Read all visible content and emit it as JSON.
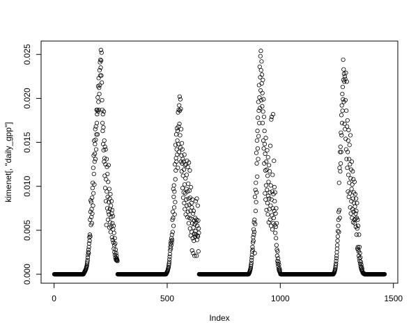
{
  "chart_data": {
    "type": "scatter",
    "title": "",
    "xlabel": "Index",
    "ylabel": "kimenet[, \"daily_gpp\"]",
    "xlim": [
      -57.4,
      1519.4
    ],
    "ylim": [
      -0.00102,
      0.02652
    ],
    "xticks": [
      "0",
      "500",
      "1000",
      "1500"
    ],
    "yticks": [
      "0.000",
      "0.005",
      "0.010",
      "0.015",
      "0.020",
      "0.025"
    ],
    "grid": false,
    "marker": "open-circle",
    "color": "#000000",
    "y": [
      0,
      0,
      0,
      0,
      0,
      0,
      0,
      0,
      0,
      0,
      0,
      0,
      0,
      0,
      0,
      0,
      0,
      0,
      0,
      0,
      0,
      0,
      0,
      0,
      0,
      0,
      0,
      0,
      0,
      0,
      0,
      0,
      0,
      0,
      0,
      0,
      0,
      0,
      0,
      0,
      0,
      0,
      0,
      0,
      0,
      0,
      0,
      0,
      0,
      0,
      0,
      0,
      0,
      0,
      0,
      0,
      0,
      0,
      0,
      0,
      0,
      0,
      0,
      0,
      0,
      0,
      0,
      0,
      0,
      0,
      0,
      0,
      0,
      0,
      0,
      0,
      0,
      0,
      0,
      0,
      0,
      0,
      0,
      0,
      0,
      0,
      0,
      0,
      0,
      0,
      0,
      0,
      0,
      0,
      0,
      0,
      0,
      0,
      0,
      0,
      0,
      0,
      0,
      0,
      0,
      0,
      0,
      0,
      0,
      0,
      0,
      0,
      0,
      0,
      0,
      0,
      0,
      0,
      0,
      0,
      0,
      0,
      0,
      0,
      0,
      0,
      0,
      0,
      0,
      0,
      0.0001,
      0.0001,
      0.0002,
      0.0002,
      0.0003,
      0.0003,
      0.0004,
      0.0004,
      0.0005,
      0.0005,
      0.0006,
      0.0007,
      0.0008,
      0.0009,
      0.001,
      0.0012,
      0.0014,
      0.0016,
      0.0019,
      0.0022,
      0.0025,
      0.0028,
      0.0024,
      0.0031,
      0.0035,
      0.0042,
      0.0038,
      0.0045,
      0.0062,
      0.0043,
      0.0071,
      0.0084,
      0.0056,
      0.0082,
      0.0065,
      0.0074,
      0.0058,
      0.0087,
      0.0069,
      0.0098,
      0.0104,
      0.0078,
      0.0121,
      0.0092,
      0.0135,
      0.0114,
      0.0152,
      0.0102,
      0.0128,
      0.0137,
      0.0148,
      0.0165,
      0.0131,
      0.0153,
      0.0168,
      0.0142,
      0.0159,
      0.0187,
      0.0172,
      0.0182,
      0.0187,
      0.0159,
      0.0201,
      0.0185,
      0.0214,
      0.0196,
      0.0223,
      0.0187,
      0.0212,
      0.0205,
      0.0232,
      0.0215,
      0.0241,
      0.0226,
      0.0244,
      0.0235,
      0.0255,
      0.0243,
      0.0226,
      0.0252,
      0.0218,
      0.0198,
      0.0187,
      0.0172,
      0.0163,
      0.0182,
      0.0148,
      0.0167,
      0.0141,
      0.0185,
      0.0128,
      0.0152,
      0.0132,
      0.0112,
      0.0145,
      0.0098,
      0.0125,
      0.0142,
      0.0083,
      0.0108,
      0.0056,
      0.0131,
      0.0094,
      0.0122,
      0.0075,
      0.0114,
      0.0088,
      0.0062,
      0.0105,
      0.0071,
      0.0124,
      0.0082,
      0.0068,
      0.0097,
      0.0053,
      0.0086,
      0.0074,
      0.0059,
      0.0091,
      0.0048,
      0.0078,
      0.0065,
      0.0054,
      0.0083,
      0.0069,
      0.0042,
      0.0073,
      0.0058,
      0.0039,
      0.0066,
      0.0051,
      0.0036,
      0.0055,
      0.0029,
      0.0047,
      0.0033,
      0.0025,
      0.0041,
      0.0022,
      0.0035,
      0.0019,
      0.0028,
      0.0017,
      0.0024,
      0.0016,
      0.0021,
      0.0018,
      0.0017,
      0.0016,
      0.0015,
      0,
      0,
      0,
      0,
      0,
      0,
      0,
      0,
      0,
      0,
      0,
      0,
      0,
      0,
      0,
      0,
      0,
      0,
      0,
      0,
      0,
      0,
      0,
      0,
      0,
      0,
      0,
      0,
      0,
      0,
      0,
      0,
      0,
      0,
      0,
      0,
      0,
      0,
      0,
      0,
      0,
      0,
      0,
      0,
      0,
      0,
      0,
      0,
      0,
      0,
      0,
      0,
      0,
      0,
      0,
      0,
      0,
      0,
      0,
      0,
      0,
      0,
      0,
      0,
      0,
      0,
      0,
      0,
      0,
      0,
      0,
      0,
      0,
      0,
      0,
      0,
      0,
      0,
      0,
      0,
      0,
      0,
      0,
      0,
      0,
      0,
      0,
      0,
      0,
      0,
      0,
      0,
      0,
      0,
      0,
      0,
      0,
      0,
      0,
      0,
      0,
      0,
      0,
      0,
      0,
      0,
      0,
      0,
      0,
      0,
      0,
      0,
      0,
      0,
      0,
      0,
      0,
      0,
      0,
      0,
      0,
      0,
      0,
      0,
      0,
      0,
      0,
      0,
      0,
      0,
      0,
      0,
      0,
      0,
      0,
      0,
      0,
      0,
      0,
      0,
      0,
      0,
      0,
      0,
      0,
      0,
      0,
      0,
      0,
      0,
      0,
      0,
      0,
      0,
      0,
      0,
      0,
      0,
      0,
      0,
      0,
      0,
      0,
      0,
      0,
      0,
      0,
      0,
      0,
      0,
      0,
      0,
      0,
      0,
      0,
      0,
      0,
      0,
      0,
      0,
      0,
      0,
      0,
      0,
      0,
      0,
      0,
      0,
      0,
      0,
      0,
      0,
      0,
      0,
      0,
      0,
      0,
      0,
      0,
      0,
      0,
      0,
      0,
      0,
      0,
      0,
      0,
      0,
      0,
      0,
      0,
      0,
      0,
      0,
      0,
      0.0001,
      0.0001,
      0.0002,
      0.0002,
      0.0003,
      0.0003,
      0.0004,
      0.0005,
      0.0006,
      0.0007,
      0.0008,
      0.001,
      0.0012,
      0.0014,
      0.0017,
      0.002,
      0.0023,
      0.0027,
      0.0031,
      0.0035,
      0.0029,
      0.0038,
      0.0033,
      0.0041,
      0.0036,
      0.0045,
      0.0039,
      0.0062,
      0.0048,
      0.0071,
      0.0064,
      0.0097,
      0.0055,
      0.0088,
      0.0101,
      0.0076,
      0.0094,
      0.0068,
      0.0125,
      0.0082,
      0.0108,
      0.0147,
      0.0118,
      0.0132,
      0.0159,
      0.0128,
      0.0142,
      0.0166,
      0.0136,
      0.0152,
      0.0163,
      0.0121,
      0.0184,
      0.0148,
      0.0168,
      0.0187,
      0.0139,
      0.0192,
      0.0171,
      0.0202,
      0.0186,
      0.0158,
      0.0199,
      0.0144,
      0.0188,
      0.0128,
      0.0165,
      0.0135,
      0.0117,
      0.0149,
      0.0126,
      0.0142,
      0.0098,
      0.0131,
      0.0112,
      0.0087,
      0.0128,
      0.0093,
      0.0119,
      0.0081,
      0.0136,
      0.0102,
      0.0074,
      0.0124,
      0.0092,
      0.0109,
      0.0068,
      0.0125,
      0.0085,
      0.0097,
      0.0113,
      0.0078,
      0.0129,
      0.0065,
      0.0094,
      0.0122,
      0.0071,
      0.0103,
      0.0086,
      0.0058,
      0.0127,
      0.0079,
      0.0095,
      0.0064,
      0.0118,
      0.0052,
      0.0087,
      0.0072,
      0.0044,
      0.0099,
      0.0063,
      0.0081,
      0.0048,
      0.0076,
      0.0027,
      0.0058,
      0.0085,
      0.0041,
      0.0069,
      0.0024,
      0.0053,
      0.0072,
      0.0038,
      0.0061,
      0.0046,
      0.0021,
      0.0057,
      0.0043,
      0.0064,
      0.0049,
      0.0083,
      0.0045,
      0.0059,
      0.0062,
      0.0021,
      0.0086,
      0.0039,
      0.0055,
      0.0044,
      0.0078,
      0.0043,
      0.0061,
      0.0026,
      0.0052,
      0.0047,
      0,
      0,
      0,
      0,
      0,
      0,
      0,
      0,
      0,
      0,
      0,
      0,
      0,
      0,
      0,
      0,
      0,
      0,
      0,
      0,
      0,
      0,
      0,
      0,
      0,
      0,
      0,
      0,
      0,
      0,
      0,
      0,
      0,
      0,
      0,
      0,
      0,
      0,
      0,
      0,
      0,
      0,
      0,
      0,
      0,
      0,
      0,
      0,
      0,
      0,
      0,
      0,
      0,
      0,
      0,
      0,
      0,
      0,
      0,
      0,
      0,
      0,
      0,
      0,
      0,
      0,
      0,
      0,
      0,
      0,
      0,
      0,
      0,
      0,
      0,
      0,
      0,
      0,
      0,
      0,
      0,
      0,
      0,
      0,
      0,
      0,
      0,
      0,
      0,
      0,
      0,
      0,
      0,
      0,
      0,
      0,
      0,
      0,
      0,
      0,
      0,
      0,
      0,
      0,
      0,
      0,
      0,
      0,
      0,
      0,
      0,
      0,
      0,
      0,
      0,
      0,
      0,
      0,
      0,
      0,
      0,
      0,
      0,
      0,
      0,
      0,
      0,
      0,
      0,
      0,
      0,
      0,
      0,
      0,
      0,
      0,
      0,
      0,
      0,
      0,
      0,
      0,
      0,
      0,
      0,
      0,
      0,
      0,
      0,
      0,
      0,
      0,
      0,
      0,
      0,
      0,
      0,
      0,
      0,
      0,
      0,
      0,
      0,
      0,
      0,
      0,
      0,
      0,
      0,
      0,
      0,
      0,
      0,
      0,
      0,
      0,
      0,
      0,
      0,
      0,
      0,
      0,
      0,
      0,
      0,
      0,
      0,
      0,
      0,
      0,
      0,
      0,
      0,
      0,
      0,
      0,
      0,
      0,
      0,
      0,
      0,
      0,
      0,
      0,
      0,
      0,
      0,
      0,
      0,
      0,
      0,
      0,
      0,
      0,
      0,
      0,
      0,
      0,
      0,
      0,
      0.0001,
      0.0001,
      0.0002,
      0.0002,
      0.0003,
      0.0004,
      0.0005,
      0.0006,
      0.0007,
      0.0009,
      0.0011,
      0.0013,
      0.0016,
      0.0019,
      0.0022,
      0.0026,
      0.0031,
      0.0028,
      0.0036,
      0.0042,
      0.0038,
      0.0051,
      0.0045,
      0.0059,
      0.0048,
      0.0062,
      0.0024,
      0.0088,
      0.0057,
      0.0096,
      0.0072,
      0.0104,
      0.0082,
      0.0138,
      0.0093,
      0.0126,
      0.0152,
      0.0111,
      0.0163,
      0.0143,
      0.0178,
      0.0131,
      0.0196,
      0.0157,
      0.0186,
      0.0215,
      0.0172,
      0.0201,
      0.0236,
      0.0189,
      0.0224,
      0.0248,
      0.0209,
      0.0254,
      0.0232,
      0.0198,
      0.0242,
      0.0217,
      0.0227,
      0.0191,
      0.0206,
      0.0172,
      0.0221,
      0.0185,
      0.0152,
      0.0199,
      0.0143,
      0.0179,
      0.0126,
      0.0163,
      0.0148,
      0.0092,
      0.0137,
      0.0118,
      0.0085,
      0.0155,
      0.0101,
      0.0128,
      0.0073,
      0.0119,
      0.0096,
      0.0141,
      0.0081,
      0.0112,
      0.0068,
      0.0133,
      0.0089,
      0.0105,
      0.0059,
      0.0124,
      0.0086,
      0.0074,
      0.0117,
      0.0093,
      0.0062,
      0.0146,
      0.0078,
      0.0101,
      0.0055,
      0.0176,
      0.0085,
      0.0179,
      0.0067,
      0.0094,
      0.0051,
      0.0113,
      0.0075,
      0.0182,
      0.0058,
      0.0091,
      0.0064,
      0.0129,
      0.0072,
      0.0099,
      0.0083,
      0.0056,
      0.0093,
      0.0047,
      0.0069,
      0.0054,
      0.0041,
      0.0075,
      0.0033,
      0.0058,
      0.0028,
      0.0021,
      0.0015,
      0.0026,
      0.0012,
      0.0018,
      0.0009,
      0.0014,
      0.0006,
      0.0011,
      0.0004,
      0.0007,
      0.0003,
      0.0005,
      0.0002,
      0.0001,
      0,
      0,
      0,
      0,
      0,
      0,
      0,
      0,
      0,
      0,
      0,
      0,
      0,
      0,
      0,
      0,
      0,
      0,
      0,
      0,
      0,
      0,
      0,
      0,
      0,
      0,
      0,
      0,
      0,
      0,
      0,
      0,
      0,
      0,
      0,
      0,
      0,
      0,
      0,
      0,
      0,
      0,
      0,
      0,
      0,
      0,
      0,
      0,
      0,
      0,
      0,
      0,
      0,
      0,
      0,
      0,
      0,
      0,
      0,
      0,
      0,
      0,
      0,
      0,
      0,
      0,
      0,
      0,
      0,
      0,
      0,
      0,
      0,
      0,
      0,
      0,
      0,
      0,
      0,
      0,
      0,
      0,
      0,
      0,
      0,
      0,
      0,
      0,
      0,
      0,
      0,
      0,
      0,
      0,
      0,
      0,
      0,
      0,
      0,
      0,
      0,
      0,
      0,
      0,
      0,
      0,
      0,
      0,
      0,
      0,
      0,
      0,
      0,
      0,
      0,
      0,
      0,
      0,
      0,
      0,
      0,
      0,
      0,
      0,
      0,
      0,
      0,
      0,
      0,
      0,
      0,
      0,
      0,
      0,
      0,
      0,
      0,
      0,
      0,
      0,
      0,
      0,
      0,
      0,
      0,
      0,
      0,
      0,
      0,
      0,
      0,
      0,
      0,
      0,
      0,
      0,
      0,
      0,
      0,
      0,
      0,
      0,
      0,
      0,
      0,
      0,
      0,
      0,
      0,
      0,
      0,
      0,
      0,
      0,
      0,
      0,
      0,
      0,
      0,
      0,
      0,
      0,
      0,
      0,
      0,
      0,
      0,
      0,
      0,
      0,
      0,
      0,
      0,
      0,
      0,
      0,
      0,
      0,
      0,
      0,
      0,
      0,
      0,
      0,
      0,
      0,
      0,
      0,
      0,
      0,
      0,
      0,
      0,
      0,
      0,
      0,
      0,
      0,
      0,
      0,
      0,
      0,
      0,
      0,
      0,
      0,
      0,
      0,
      0,
      0,
      0,
      0,
      0,
      0,
      0,
      0.0001,
      0.0001,
      0.0002,
      0.0002,
      0.0003,
      0.0004,
      0.0005,
      0.0006,
      0.0008,
      0.001,
      0.0012,
      0.0015,
      0.0018,
      0.0021,
      0.0025,
      0.0029,
      0.0033,
      0.0038,
      0.0043,
      0.0049,
      0.0055,
      0.0062,
      0.0071,
      0.0048,
      0.0104,
      0.0073,
      0.0121,
      0.0064,
      0.0139,
      0.0117,
      0.0145,
      0.0126,
      0.0161,
      0.0139,
      0.0181,
      0.0158,
      0.0192,
      0.0172,
      0.0205,
      0.0186,
      0.0213,
      0.0199,
      0.0244,
      0.0221,
      0.0233,
      0.0196,
      0.0228,
      0.0219,
      0.0171,
      0.0225,
      0.0165,
      0.0222,
      0.0198,
      0.0154,
      0.0229,
      0.0142,
      0.0186,
      0.0131,
      0.0219,
      0.0168,
      0.0121,
      0.0175,
      0.0139,
      0.0094,
      0.0152,
      0.0113,
      0.0164,
      0.0088,
      0.0131,
      0.0104,
      0.0147,
      0.0092,
      0.0125,
      0.0076,
      0.0158,
      0.0109,
      0.0069,
      0.0119,
      0.0083,
      0.0097,
      0.0128,
      0.0064,
      0.0102,
      0.0074,
      0.0117,
      0.0086,
      0.0059,
      0.0108,
      0.0071,
      0.0093,
      0.0081,
      0.0062,
      0.0105,
      0.0058,
      0.0077,
      0.0091,
      0.0063,
      0.0069,
      0.0054,
      0.0086,
      0.0072,
      0.0045,
      0.0064,
      0.0081,
      0.0052,
      0.0029,
      0.0062,
      0.0031,
      0.0055,
      0.0028,
      0.0026,
      0.0021,
      0.0045,
      0.0018,
      0.0031,
      0.0015,
      0.0024,
      0.0012,
      0.0019,
      0.0009,
      0.0014,
      0.0007,
      0.0011,
      0.0005,
      0.0008,
      0.0004,
      0.0006,
      0.0003,
      0.0002,
      0.0002,
      0.0001,
      0.0001,
      0.0001,
      0.0001,
      0.0001,
      0,
      0,
      0,
      0,
      0,
      0,
      0,
      0,
      0,
      0,
      0,
      0,
      0,
      0,
      0,
      0,
      0,
      0,
      0,
      0,
      0,
      0,
      0,
      0,
      0,
      0,
      0,
      0,
      0,
      0,
      0,
      0,
      0,
      0,
      0,
      0,
      0,
      0,
      0,
      0,
      0,
      0,
      0,
      0,
      0,
      0,
      0,
      0,
      0,
      0,
      0,
      0,
      0,
      0,
      0,
      0,
      0,
      0,
      0,
      0,
      0,
      0,
      0,
      0,
      0,
      0,
      0,
      0,
      0,
      0,
      0,
      0,
      0,
      0,
      0,
      0,
      0,
      0,
      0,
      0,
      0,
      0,
      0,
      0,
      0,
      0,
      0,
      0,
      0,
      0,
      0
    ]
  }
}
